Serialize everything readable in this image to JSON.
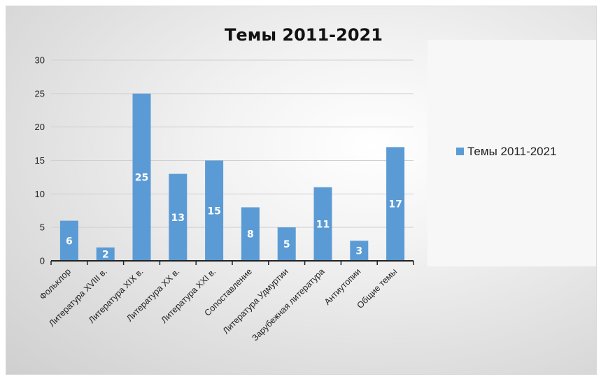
{
  "chart_data": {
    "type": "bar",
    "title": "Темы 2011-2021",
    "categories": [
      "Фольклор",
      "Литература XVIII в.",
      "Литература XIX в.",
      "Литература XX в.",
      "Литература XXI в.",
      "Сопоставление",
      "Литература Удмуртии",
      "Зарубежная литература",
      "Антиутопии",
      "Общие темы"
    ],
    "series": [
      {
        "name": "Темы 2011-2021",
        "values": [
          6,
          2,
          25,
          13,
          15,
          8,
          5,
          11,
          3,
          17
        ],
        "color": "#5b9bd5"
      }
    ],
    "ylim": [
      0,
      30
    ],
    "yticks": [
      0,
      5,
      10,
      15,
      20,
      25,
      30
    ],
    "xlabel": "",
    "ylabel": "",
    "grid": true,
    "legend": "right",
    "data_labels": true
  }
}
